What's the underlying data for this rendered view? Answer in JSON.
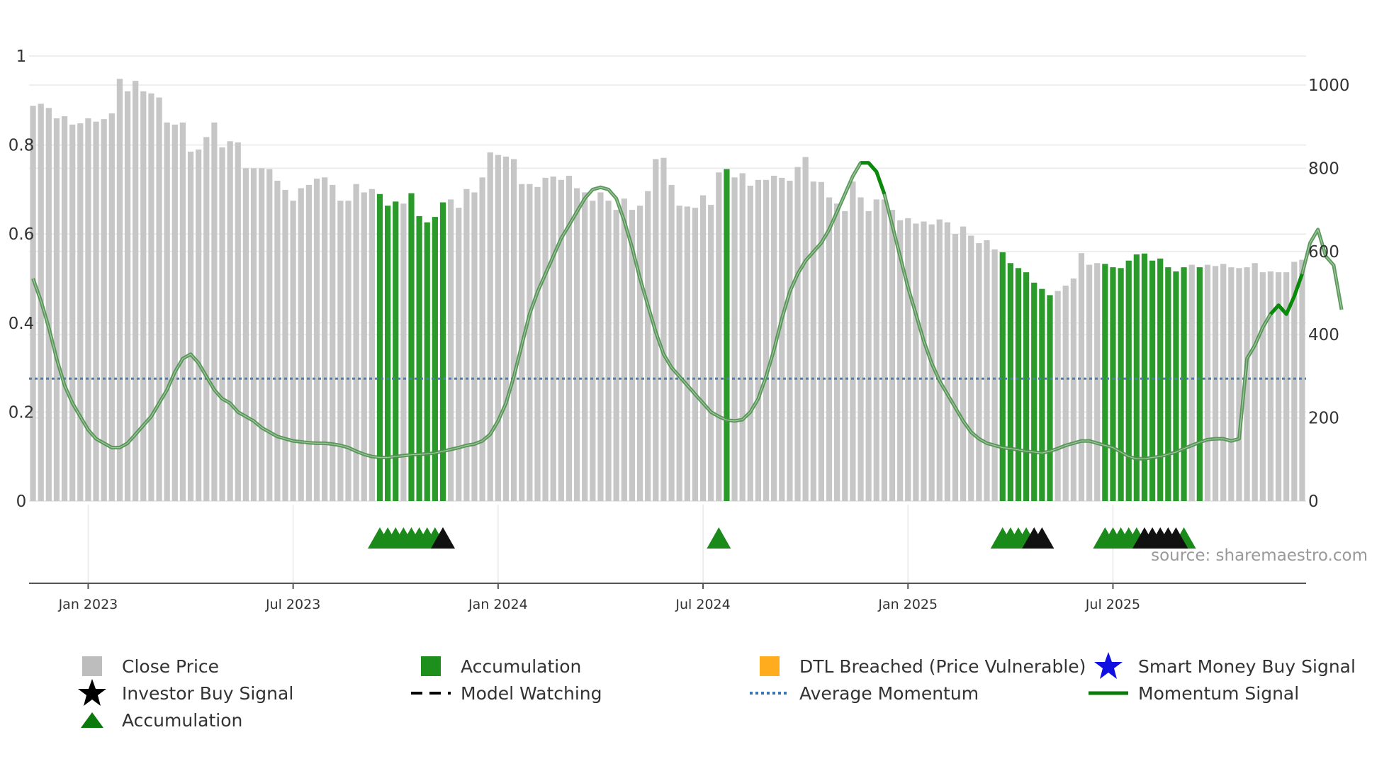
{
  "chart_data": {
    "type": "bar+line",
    "source_text": "source: sharemaestro.com",
    "left_axis": {
      "ticks": [
        "0",
        "0.2",
        "0.4",
        "0.6",
        "0.8",
        "1"
      ],
      "range": [
        0,
        1
      ]
    },
    "right_axis": {
      "ticks": [
        "0",
        "200",
        "400",
        "600",
        "800",
        "1000"
      ],
      "range": [
        0,
        1000
      ]
    },
    "x_ticks": [
      "Jan 2023",
      "Jul 2023",
      "Jan 2024",
      "Jul 2024",
      "Jan 2025",
      "Jul 2025"
    ],
    "x_tick_weeks": [
      7,
      33,
      59,
      85,
      111,
      137
    ],
    "close_price": [
      950,
      955,
      945,
      920,
      925,
      905,
      908,
      920,
      912,
      918,
      932,
      1015,
      985,
      1010,
      985,
      980,
      970,
      910,
      905,
      910,
      840,
      845,
      875,
      910,
      850,
      865,
      862,
      800,
      800,
      800,
      798,
      770,
      748,
      722,
      752,
      760,
      775,
      778,
      760,
      722,
      722,
      762,
      742,
      750,
      738,
      710,
      720,
      715,
      740,
      685,
      670,
      683,
      718,
      725,
      705,
      750,
      742,
      778,
      838,
      832,
      828,
      822,
      762,
      762,
      755,
      777,
      780,
      772,
      782,
      752,
      742,
      722,
      742,
      722,
      700,
      727,
      700,
      710,
      745,
      822,
      825,
      760,
      710,
      708,
      705,
      735,
      712,
      790,
      798,
      778,
      788,
      758,
      772,
      772,
      782,
      777,
      770,
      803,
      827,
      768,
      767,
      730,
      715,
      697,
      768,
      730,
      697,
      725,
      725,
      700,
      675,
      680,
      667,
      672,
      665,
      677,
      670,
      642,
      660,
      638,
      620,
      627,
      605,
      598,
      572,
      560,
      550,
      525,
      510,
      495,
      505,
      518,
      535,
      596,
      568,
      572,
      570,
      562,
      560,
      578,
      593,
      595,
      578,
      583,
      562,
      552,
      562,
      568,
      562,
      568,
      565,
      570,
      562,
      560,
      562,
      572,
      550,
      552,
      550,
      550,
      575,
      580
    ],
    "accumulation_bars": [
      44,
      45,
      46,
      48,
      49,
      50,
      51,
      52,
      88,
      123,
      124,
      125,
      126,
      127,
      128,
      129,
      136,
      137,
      138,
      139,
      140,
      141,
      142,
      143,
      144,
      145,
      146,
      148
    ],
    "momentum": [
      0.5,
      0.45,
      0.39,
      0.32,
      0.26,
      0.22,
      0.19,
      0.16,
      0.14,
      0.13,
      0.12,
      0.12,
      0.13,
      0.15,
      0.17,
      0.19,
      0.22,
      0.25,
      0.29,
      0.32,
      0.33,
      0.31,
      0.28,
      0.25,
      0.23,
      0.22,
      0.2,
      0.19,
      0.18,
      0.165,
      0.155,
      0.145,
      0.14,
      0.135,
      0.133,
      0.131,
      0.13,
      0.13,
      0.128,
      0.125,
      0.12,
      0.112,
      0.105,
      0.1,
      0.098,
      0.098,
      0.1,
      0.102,
      0.104,
      0.105,
      0.106,
      0.108,
      0.112,
      0.116,
      0.12,
      0.125,
      0.128,
      0.135,
      0.15,
      0.18,
      0.22,
      0.28,
      0.35,
      0.42,
      0.47,
      0.51,
      0.55,
      0.59,
      0.62,
      0.65,
      0.68,
      0.7,
      0.705,
      0.7,
      0.68,
      0.63,
      0.57,
      0.5,
      0.44,
      0.38,
      0.33,
      0.3,
      0.28,
      0.26,
      0.24,
      0.22,
      0.2,
      0.19,
      0.182,
      0.18,
      0.183,
      0.2,
      0.23,
      0.28,
      0.34,
      0.41,
      0.47,
      0.51,
      0.54,
      0.56,
      0.58,
      0.61,
      0.65,
      0.69,
      0.73,
      0.76,
      0.76,
      0.74,
      0.69,
      0.62,
      0.55,
      0.48,
      0.42,
      0.36,
      0.31,
      0.27,
      0.24,
      0.21,
      0.18,
      0.155,
      0.14,
      0.13,
      0.125,
      0.12,
      0.118,
      0.115,
      0.112,
      0.11,
      0.108,
      0.112,
      0.118,
      0.125,
      0.13,
      0.135,
      0.135,
      0.13,
      0.125,
      0.12,
      0.11,
      0.1,
      0.095,
      0.095,
      0.098,
      0.1,
      0.105,
      0.11,
      0.118,
      0.125,
      0.132,
      0.138,
      0.14,
      0.14,
      0.135,
      0.14,
      0.32,
      0.35,
      0.39,
      0.42,
      0.44,
      0.42,
      0.46,
      0.51,
      0.58,
      0.61,
      0.55,
      0.53,
      0.43
    ],
    "momentum_bright_ranges": [
      [
        105,
        108
      ],
      [
        157,
        161
      ]
    ],
    "average_momentum": 0.275,
    "markers": {
      "accumulation": [
        44,
        45,
        46,
        47,
        48,
        49,
        50,
        51,
        52,
        87,
        123,
        124,
        125,
        126,
        136,
        137,
        138,
        139,
        140,
        146
      ],
      "investor_buy": [
        52,
        127,
        128,
        141,
        142,
        143,
        144,
        145
      ]
    },
    "legend": [
      {
        "symbol": "gray-square",
        "label": "Close Price"
      },
      {
        "symbol": "green-square",
        "label": "Accumulation"
      },
      {
        "symbol": "orange-square",
        "label": "DTL Breached (Price Vulnerable)"
      },
      {
        "symbol": "blue-star",
        "label": "Smart Money Buy Signal"
      },
      {
        "symbol": "black-star",
        "label": "Investor Buy Signal"
      },
      {
        "symbol": "dashes",
        "label": "Model Watching"
      },
      {
        "symbol": "dotted-line",
        "label": "Average Momentum"
      },
      {
        "symbol": "green-line",
        "label": "Momentum Signal"
      },
      {
        "symbol": "green-triangle",
        "label": "Accumulation"
      }
    ],
    "colors": {
      "close": "#c6c6c6",
      "accumulation": "#2a9a2a",
      "momentum": "#4d8f4d",
      "momentum_bright": "#0a8a0a",
      "avg": "#4f7fa8",
      "grid": "#e8e8e8",
      "dtl": "#ffad1f",
      "smart": "#1010e0"
    }
  }
}
